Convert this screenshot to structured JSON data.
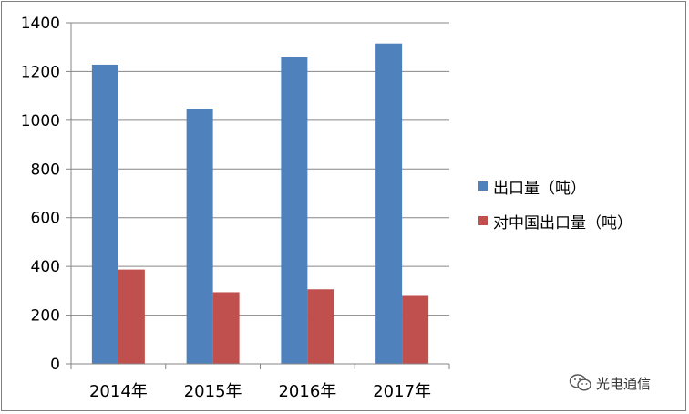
{
  "chart_data": {
    "type": "bar",
    "categories": [
      "2014年",
      "2015年",
      "2016年",
      "2017年"
    ],
    "series": [
      {
        "name": "出口量（吨）",
        "values": [
          1228,
          1048,
          1258,
          1315
        ],
        "color": "#4f81bd"
      },
      {
        "name": "对中国出口量（吨）",
        "values": [
          387,
          294,
          306,
          279
        ],
        "color": "#c0504d"
      }
    ],
    "ylim": [
      0,
      1400
    ],
    "yticks": [
      0,
      200,
      400,
      600,
      800,
      1000,
      1200,
      1400
    ],
    "grid": true,
    "legend_position": "right"
  },
  "watermark": {
    "text": "光电通信",
    "icon": "wechat-icon"
  }
}
